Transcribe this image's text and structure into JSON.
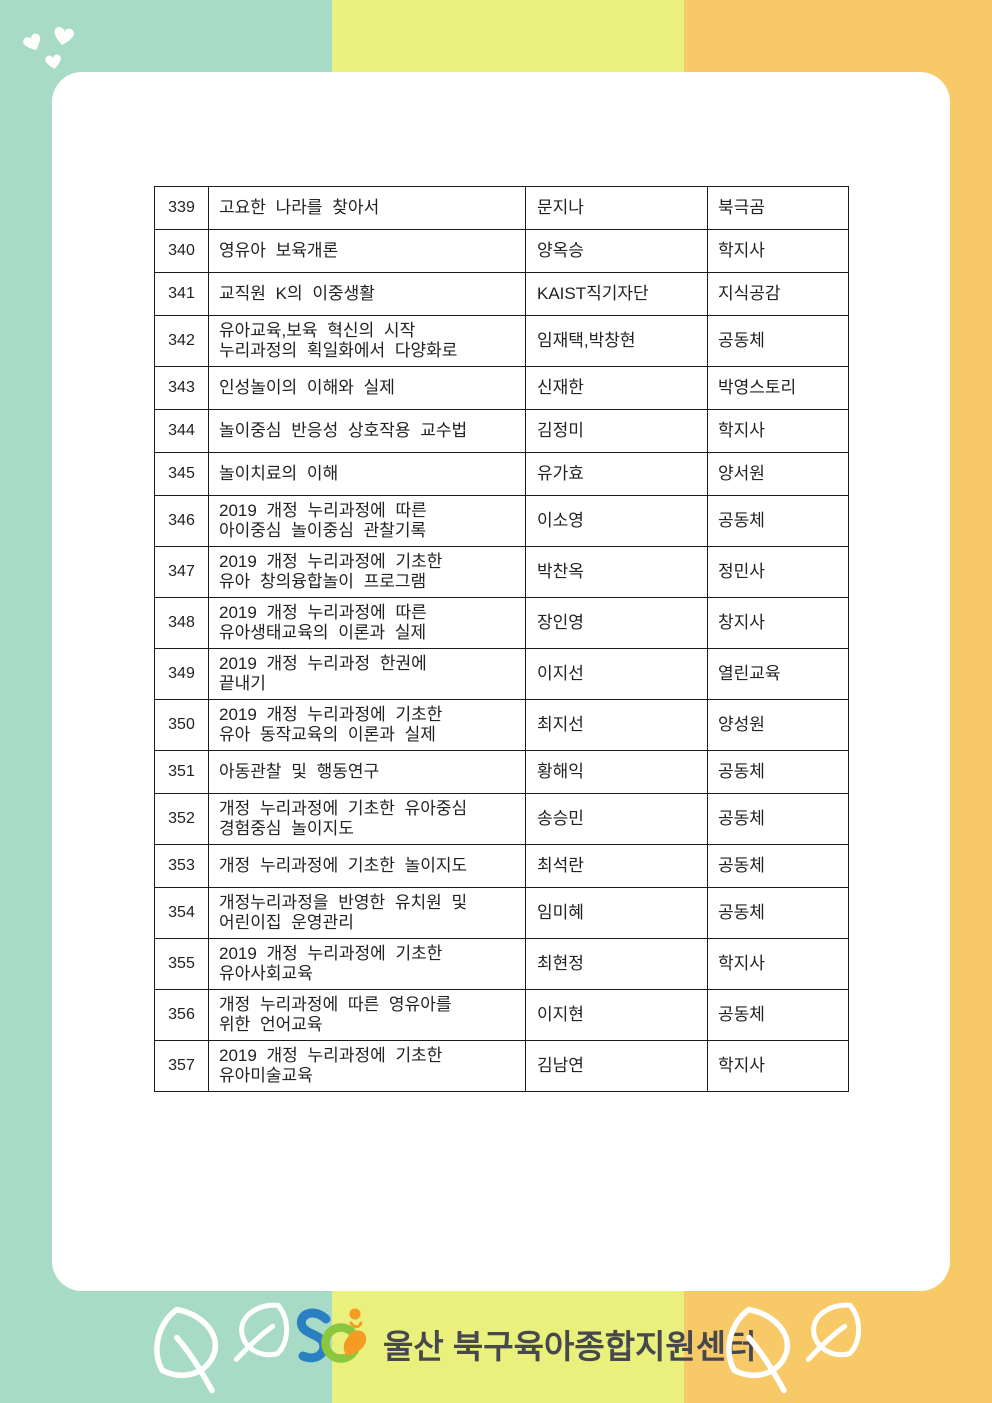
{
  "colors": {
    "stripe_mint": "#a7dbc6",
    "stripe_yellow": "#e9f07c",
    "stripe_orange": "#f8c967",
    "card": "#ffffff",
    "table_border": "#1c1c1c",
    "table_text": "#222222",
    "logo_text": "#47474f",
    "logo_blue": "#2b80c4",
    "logo_green": "#8cc63e",
    "logo_orange": "#f59a23",
    "decor_white": "#ffffff"
  },
  "icons": {
    "hearts": "heart-icon",
    "leaves": "leaf-icon",
    "logo_mark": "center-logo-mark-icon"
  },
  "table": {
    "rows": [
      {
        "no": "339",
        "title": "고요한 나라를 찾아서",
        "author": "문지나",
        "publisher": "북극곰",
        "tall": false
      },
      {
        "no": "340",
        "title": "영유아 보육개론",
        "author": "양옥승",
        "publisher": "학지사",
        "tall": false
      },
      {
        "no": "341",
        "title": "교직원 K의 이중생활",
        "author": "KAIST직기자단",
        "publisher": "지식공감",
        "tall": false
      },
      {
        "no": "342",
        "title": "유아교육,보육 혁신의 시작\n누리과정의 획일화에서 다양화로",
        "author": "임재택,박창현",
        "publisher": "공동체",
        "tall": true
      },
      {
        "no": "343",
        "title": "인성놀이의 이해와 실제",
        "author": "신재한",
        "publisher": "박영스토리",
        "tall": false
      },
      {
        "no": "344",
        "title": "놀이중심 반응성 상호작용 교수법",
        "author": "김정미",
        "publisher": "학지사",
        "tall": false
      },
      {
        "no": "345",
        "title": "놀이치료의 이해",
        "author": "유가효",
        "publisher": "양서원",
        "tall": false
      },
      {
        "no": "346",
        "title": "2019 개정 누리과정에 따른\n아이중심 놀이중심 관찰기록",
        "author": "이소영",
        "publisher": "공동체",
        "tall": true
      },
      {
        "no": "347",
        "title": "2019 개정 누리과정에 기초한\n유아 창의융합놀이 프로그램",
        "author": "박찬옥",
        "publisher": "정민사",
        "tall": true
      },
      {
        "no": "348",
        "title": "2019 개정 누리과정에 따른\n유아생태교육의 이론과 실제",
        "author": "장인영",
        "publisher": "창지사",
        "tall": true
      },
      {
        "no": "349",
        "title": "2019 개정 누리과정 한권에\n끝내기",
        "author": "이지선",
        "publisher": "열린교육",
        "tall": true
      },
      {
        "no": "350",
        "title": "2019 개정 누리과정에 기초한\n유아 동작교육의 이론과 실제",
        "author": "최지선",
        "publisher": "양성원",
        "tall": true
      },
      {
        "no": "351",
        "title": "아동관찰 및 행동연구",
        "author": "황해익",
        "publisher": "공동체",
        "tall": false
      },
      {
        "no": "352",
        "title": "개정 누리과정에 기초한 유아중심\n경험중심 놀이지도",
        "author": "송승민",
        "publisher": "공동체",
        "tall": true
      },
      {
        "no": "353",
        "title": "개정 누리과정에 기초한 놀이지도",
        "author": "최석란",
        "publisher": "공동체",
        "tall": false
      },
      {
        "no": "354",
        "title": "개정누리과정을 반영한 유치원 및\n어린이집 운영관리",
        "author": "임미혜",
        "publisher": "공동체",
        "tall": true
      },
      {
        "no": "355",
        "title": "2019 개정 누리과정에 기초한\n유아사회교육",
        "author": "최현정",
        "publisher": "학지사",
        "tall": true
      },
      {
        "no": "356",
        "title": "개정 누리과정에 따른 영유아를\n위한 언어교육",
        "author": "이지현",
        "publisher": "공동체",
        "tall": true
      },
      {
        "no": "357",
        "title": "2019 개정 누리과정에 기초한\n유아미술교육",
        "author": "김남연",
        "publisher": "학지사",
        "tall": true
      }
    ]
  },
  "footer": {
    "logo_text": "울산 북구육아종합지원센터"
  }
}
